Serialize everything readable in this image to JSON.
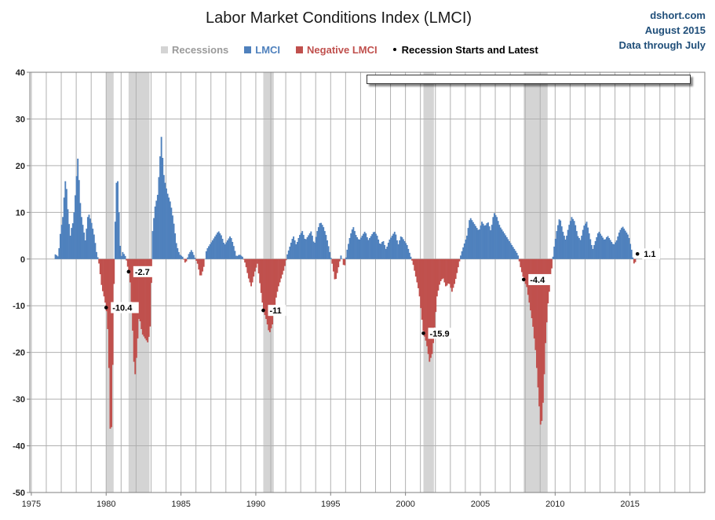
{
  "chart_data": {
    "type": "bar",
    "title": "Labor Market Conditions Index  (LMCI)",
    "credit": [
      "dshort.com",
      "August 2015",
      "Data through July"
    ],
    "legend": {
      "recessions": "Recessions",
      "lmci": "LMCI",
      "negative": "Negative LMCI",
      "points": "Recession Starts and Latest"
    },
    "colors": {
      "positive": "#4f81bd",
      "negative": "#c0504d",
      "recession": "#d4d4d4",
      "legend_recession_text": "#9a9a9a",
      "legend_lmci_text": "#4f81bd",
      "legend_negative_text": "#c0504d",
      "grid": "#b0b0b0"
    },
    "xlim": [
      1974.9,
      2020.0
    ],
    "ylim": [
      -50,
      40
    ],
    "xticks": [
      1975,
      1980,
      1985,
      1990,
      1995,
      2000,
      2005,
      2010,
      2015
    ],
    "yticks": [
      -50,
      -40,
      -30,
      -20,
      -10,
      0,
      10,
      20,
      30,
      40
    ],
    "vertical_grid_every_year": true,
    "legend_position": "top",
    "recessions": [
      [
        1980.0,
        1980.5
      ],
      [
        1981.5,
        1982.9
      ],
      [
        1990.5,
        1991.2
      ],
      [
        2001.2,
        2001.9
      ],
      [
        2007.9,
        2009.5
      ]
    ],
    "annotation_points": [
      {
        "x": 1980.0,
        "y": -10.4,
        "label": "-10.4"
      },
      {
        "x": 1981.5,
        "y": -2.7,
        "label": "-2.7"
      },
      {
        "x": 1990.5,
        "y": -11,
        "label": "-11"
      },
      {
        "x": 2001.2,
        "y": -15.9,
        "label": "-15.9"
      },
      {
        "x": 2007.9,
        "y": -4.4,
        "label": "-4.4"
      },
      {
        "x": 2015.5,
        "y": 1.1,
        "label": "1.1"
      }
    ],
    "anchors": [
      [
        1976.6,
        1.0
      ],
      [
        1976.8,
        0.5
      ],
      [
        1976.95,
        6
      ],
      [
        1977.1,
        9
      ],
      [
        1977.2,
        14
      ],
      [
        1977.3,
        18
      ],
      [
        1977.4,
        12
      ],
      [
        1977.5,
        8
      ],
      [
        1977.6,
        5
      ],
      [
        1977.7,
        7
      ],
      [
        1977.8,
        8
      ],
      [
        1977.9,
        12
      ],
      [
        1978.0,
        17
      ],
      [
        1978.1,
        21.5
      ],
      [
        1978.2,
        16
      ],
      [
        1978.3,
        10
      ],
      [
        1978.45,
        7
      ],
      [
        1978.6,
        4
      ],
      [
        1978.8,
        10
      ],
      [
        1979.0,
        8
      ],
      [
        1979.2,
        5
      ],
      [
        1979.35,
        1.5
      ],
      [
        1979.5,
        -0.5
      ],
      [
        1979.7,
        -6
      ],
      [
        1979.85,
        -8
      ],
      [
        1980.0,
        -10.4
      ],
      [
        1980.1,
        -15
      ],
      [
        1980.2,
        -25
      ],
      [
        1980.3,
        -42
      ],
      [
        1980.4,
        -30
      ],
      [
        1980.5,
        -8
      ],
      [
        1980.6,
        8
      ],
      [
        1980.7,
        18
      ],
      [
        1980.8,
        16
      ],
      [
        1980.9,
        4
      ],
      [
        1981.0,
        0.5
      ],
      [
        1981.1,
        1.5
      ],
      [
        1981.2,
        1
      ],
      [
        1981.3,
        0.5
      ],
      [
        1981.5,
        -2.7
      ],
      [
        1981.6,
        -5
      ],
      [
        1981.7,
        -10
      ],
      [
        1981.8,
        -18
      ],
      [
        1981.9,
        -26
      ],
      [
        1982.0,
        -22
      ],
      [
        1982.2,
        -12
      ],
      [
        1982.4,
        -16
      ],
      [
        1982.6,
        -17
      ],
      [
        1982.8,
        -18
      ],
      [
        1982.95,
        -14
      ],
      [
        1983.1,
        6
      ],
      [
        1983.25,
        11
      ],
      [
        1983.45,
        14
      ],
      [
        1983.6,
        22
      ],
      [
        1983.7,
        27
      ],
      [
        1983.8,
        19
      ],
      [
        1983.95,
        16
      ],
      [
        1984.1,
        14
      ],
      [
        1984.3,
        12
      ],
      [
        1984.5,
        8
      ],
      [
        1984.7,
        3
      ],
      [
        1984.9,
        1
      ],
      [
        1985.1,
        0.5
      ],
      [
        1985.3,
        -1
      ],
      [
        1985.5,
        1
      ],
      [
        1985.7,
        2
      ],
      [
        1985.9,
        0.5
      ],
      [
        1986.1,
        -1
      ],
      [
        1986.3,
        -4
      ],
      [
        1986.5,
        -2
      ],
      [
        1986.7,
        2
      ],
      [
        1986.9,
        3
      ],
      [
        1987.1,
        4
      ],
      [
        1987.3,
        5
      ],
      [
        1987.5,
        6
      ],
      [
        1987.7,
        5
      ],
      [
        1987.9,
        3
      ],
      [
        1988.1,
        4
      ],
      [
        1988.3,
        5
      ],
      [
        1988.5,
        3
      ],
      [
        1988.7,
        0.5
      ],
      [
        1988.9,
        1
      ],
      [
        1989.1,
        0.5
      ],
      [
        1989.3,
        -1
      ],
      [
        1989.5,
        -4
      ],
      [
        1989.7,
        -6
      ],
      [
        1989.9,
        -3
      ],
      [
        1990.1,
        -1
      ],
      [
        1990.3,
        -6
      ],
      [
        1990.5,
        -11
      ],
      [
        1990.7,
        -13
      ],
      [
        1990.9,
        -16
      ],
      [
        1991.1,
        -14
      ],
      [
        1991.3,
        -9
      ],
      [
        1991.5,
        -6
      ],
      [
        1991.7,
        -4
      ],
      [
        1991.9,
        -2
      ],
      [
        1992.1,
        1
      ],
      [
        1992.3,
        3
      ],
      [
        1992.5,
        5
      ],
      [
        1992.7,
        3
      ],
      [
        1992.9,
        5
      ],
      [
        1993.1,
        6
      ],
      [
        1993.3,
        4
      ],
      [
        1993.5,
        5
      ],
      [
        1993.7,
        6
      ],
      [
        1993.9,
        3
      ],
      [
        1994.1,
        6
      ],
      [
        1994.3,
        8
      ],
      [
        1994.5,
        7
      ],
      [
        1994.7,
        5
      ],
      [
        1994.9,
        2
      ],
      [
        1995.1,
        -1
      ],
      [
        1995.3,
        -5
      ],
      [
        1995.5,
        -2
      ],
      [
        1995.7,
        1
      ],
      [
        1995.9,
        -2
      ],
      [
        1996.1,
        2
      ],
      [
        1996.3,
        5
      ],
      [
        1996.5,
        7
      ],
      [
        1996.7,
        5
      ],
      [
        1996.9,
        4
      ],
      [
        1997.1,
        5
      ],
      [
        1997.3,
        6
      ],
      [
        1997.5,
        4
      ],
      [
        1997.7,
        5
      ],
      [
        1997.9,
        6
      ],
      [
        1998.1,
        5
      ],
      [
        1998.3,
        3
      ],
      [
        1998.5,
        4
      ],
      [
        1998.7,
        2
      ],
      [
        1998.9,
        4
      ],
      [
        1999.1,
        5
      ],
      [
        1999.3,
        6
      ],
      [
        1999.5,
        3
      ],
      [
        1999.7,
        5
      ],
      [
        1999.9,
        4
      ],
      [
        2000.1,
        3
      ],
      [
        2000.3,
        1
      ],
      [
        2000.5,
        -1
      ],
      [
        2000.7,
        -4
      ],
      [
        2000.9,
        -7
      ],
      [
        2001.1,
        -13
      ],
      [
        2001.2,
        -15.9
      ],
      [
        2001.4,
        -18
      ],
      [
        2001.6,
        -22
      ],
      [
        2001.8,
        -20
      ],
      [
        2001.95,
        -14
      ],
      [
        2002.1,
        -8
      ],
      [
        2002.3,
        -5
      ],
      [
        2002.5,
        -4
      ],
      [
        2002.7,
        -6
      ],
      [
        2002.9,
        -5
      ],
      [
        2003.1,
        -7
      ],
      [
        2003.3,
        -5
      ],
      [
        2003.5,
        -2
      ],
      [
        2003.7,
        1
      ],
      [
        2003.9,
        3
      ],
      [
        2004.1,
        5
      ],
      [
        2004.3,
        9
      ],
      [
        2004.5,
        8
      ],
      [
        2004.7,
        7
      ],
      [
        2004.9,
        6
      ],
      [
        2005.1,
        8
      ],
      [
        2005.3,
        7
      ],
      [
        2005.5,
        8
      ],
      [
        2005.7,
        6
      ],
      [
        2005.9,
        10
      ],
      [
        2006.1,
        9
      ],
      [
        2006.3,
        7
      ],
      [
        2006.5,
        6
      ],
      [
        2006.7,
        5
      ],
      [
        2006.9,
        4
      ],
      [
        2007.1,
        3
      ],
      [
        2007.3,
        2
      ],
      [
        2007.5,
        1
      ],
      [
        2007.7,
        -2
      ],
      [
        2007.9,
        -4.4
      ],
      [
        2008.1,
        -6
      ],
      [
        2008.3,
        -10
      ],
      [
        2008.5,
        -14
      ],
      [
        2008.7,
        -20
      ],
      [
        2008.9,
        -30
      ],
      [
        2009.05,
        -37
      ],
      [
        2009.2,
        -30
      ],
      [
        2009.35,
        -18
      ],
      [
        2009.5,
        -10
      ],
      [
        2009.7,
        -4
      ],
      [
        2009.9,
        2
      ],
      [
        2010.1,
        6
      ],
      [
        2010.3,
        9
      ],
      [
        2010.5,
        6
      ],
      [
        2010.7,
        4
      ],
      [
        2010.9,
        7
      ],
      [
        2011.1,
        9
      ],
      [
        2011.3,
        8
      ],
      [
        2011.5,
        5
      ],
      [
        2011.7,
        4
      ],
      [
        2011.9,
        7
      ],
      [
        2012.1,
        8
      ],
      [
        2012.3,
        5
      ],
      [
        2012.5,
        2
      ],
      [
        2012.7,
        4
      ],
      [
        2012.9,
        6
      ],
      [
        2013.1,
        5
      ],
      [
        2013.3,
        4
      ],
      [
        2013.5,
        5
      ],
      [
        2013.7,
        4
      ],
      [
        2013.9,
        3
      ],
      [
        2014.1,
        4
      ],
      [
        2014.3,
        6
      ],
      [
        2014.5,
        7
      ],
      [
        2014.7,
        6
      ],
      [
        2014.9,
        5
      ],
      [
        2015.1,
        2
      ],
      [
        2015.25,
        -1
      ],
      [
        2015.4,
        -0.5
      ],
      [
        2015.5,
        1.1
      ]
    ]
  }
}
